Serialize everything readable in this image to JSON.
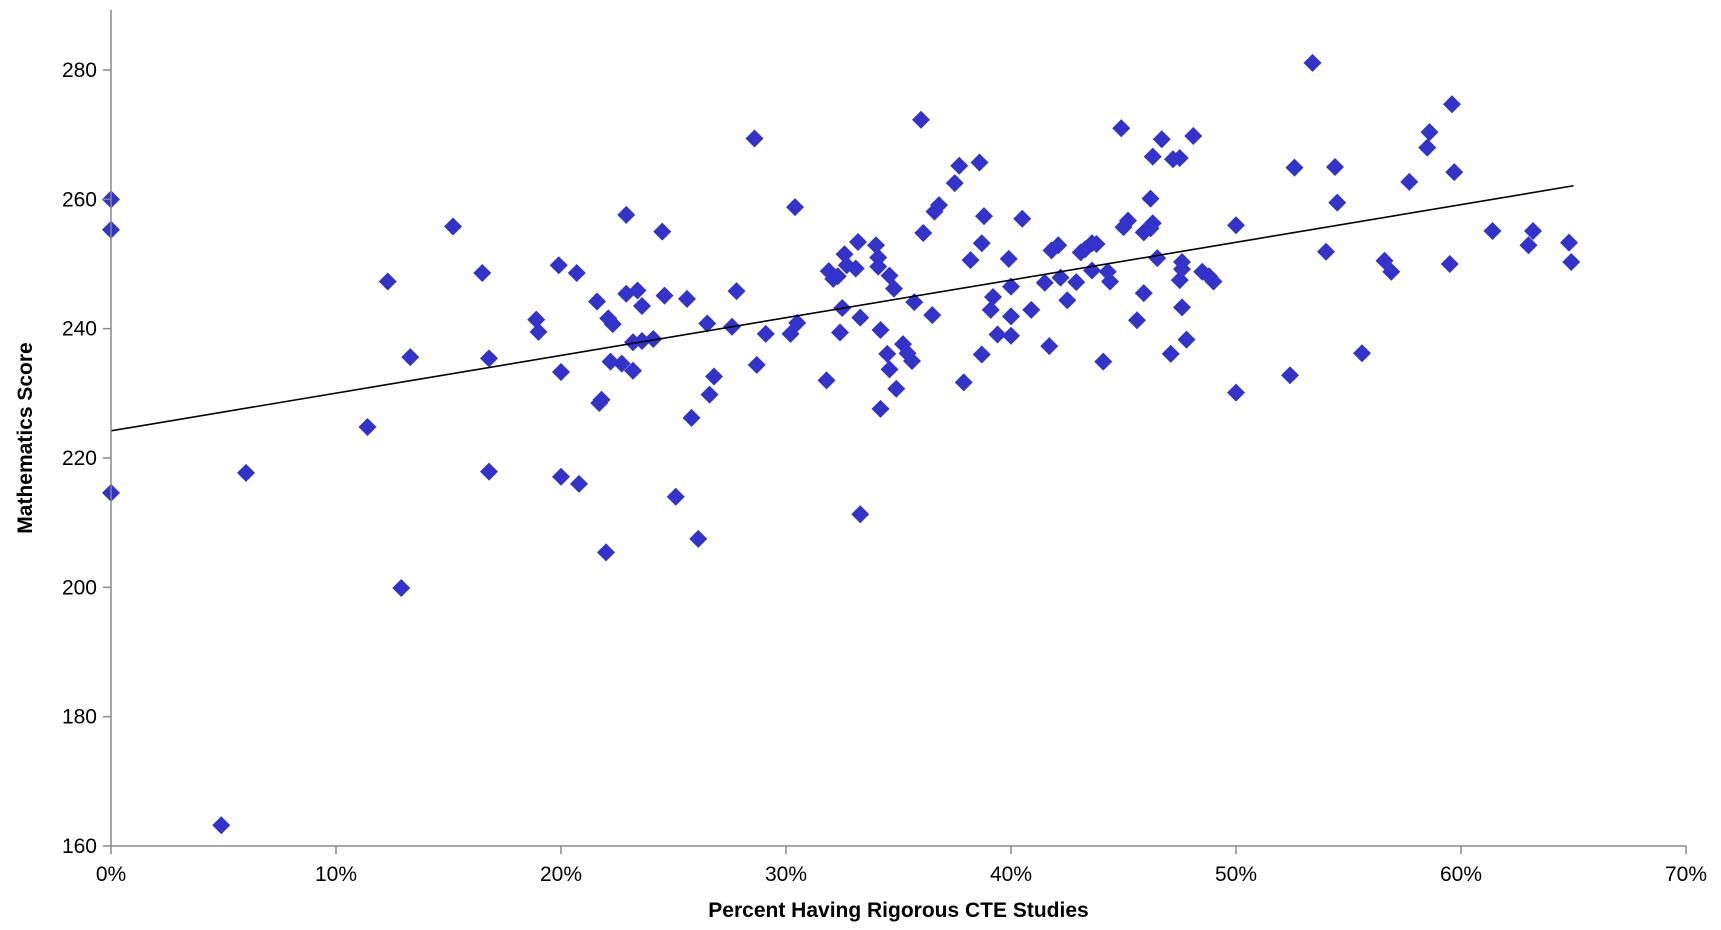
{
  "chart_data": {
    "type": "scatter",
    "title": "",
    "xlabel": "Percent Having Rigorous CTE Studies",
    "ylabel": "Mathematics Score",
    "xlim": [
      0,
      70
    ],
    "ylim": [
      160,
      290
    ],
    "x_ticks": [
      0,
      10,
      20,
      30,
      40,
      50,
      60,
      70
    ],
    "x_tick_labels": [
      "0%",
      "10%",
      "20%",
      "30%",
      "40%",
      "50%",
      "60%",
      "70%"
    ],
    "y_ticks": [
      160,
      180,
      200,
      220,
      240,
      260,
      280
    ],
    "y_tick_labels": [
      "160",
      "180",
      "200",
      "220",
      "240",
      "260",
      "280"
    ],
    "grid": false,
    "legend": "none",
    "marker": "diamond",
    "marker_color": "#3333CC",
    "trendline_color": "#000000",
    "trendline": {
      "x": [
        0,
        65
      ],
      "y": [
        224.2,
        262.1
      ]
    },
    "points": [
      [
        0,
        260
      ],
      [
        0,
        255.3
      ],
      [
        0,
        214.6
      ],
      [
        4.9,
        163.2
      ],
      [
        6,
        217.7
      ],
      [
        11.4,
        224.8
      ],
      [
        12.3,
        247.3
      ],
      [
        12.9,
        199.9
      ],
      [
        13.3,
        235.6
      ],
      [
        15.2,
        255.8
      ],
      [
        16.5,
        248.6
      ],
      [
        16.8,
        235.4
      ],
      [
        16.8,
        217.9
      ],
      [
        18.9,
        241.4
      ],
      [
        19,
        239.5
      ],
      [
        19.9,
        249.8
      ],
      [
        20,
        233.3
      ],
      [
        20,
        217.1
      ],
      [
        20.7,
        248.6
      ],
      [
        20.8,
        216
      ],
      [
        21.6,
        244.2
      ],
      [
        21.7,
        228.5
      ],
      [
        21.8,
        229
      ],
      [
        22,
        205.4
      ],
      [
        22.1,
        241.6
      ],
      [
        22.2,
        234.9
      ],
      [
        22.3,
        240.7
      ],
      [
        22.7,
        234.6
      ],
      [
        22.9,
        257.6
      ],
      [
        22.9,
        245.4
      ],
      [
        23.2,
        233.5
      ],
      [
        23.2,
        237.9
      ],
      [
        23.4,
        245.9
      ],
      [
        23.6,
        243.5
      ],
      [
        23.6,
        238.1
      ],
      [
        24.1,
        238.4
      ],
      [
        24.5,
        255
      ],
      [
        24.6,
        245.1
      ],
      [
        25.1,
        214
      ],
      [
        25.6,
        244.6
      ],
      [
        25.8,
        226.2
      ],
      [
        26.1,
        207.5
      ],
      [
        26.5,
        240.8
      ],
      [
        26.6,
        229.8
      ],
      [
        26.8,
        232.6
      ],
      [
        27.6,
        240.3
      ],
      [
        27.8,
        245.8
      ],
      [
        28.6,
        269.4
      ],
      [
        28.7,
        234.4
      ],
      [
        29.1,
        239.2
      ],
      [
        30.2,
        239.2
      ],
      [
        30.4,
        258.8
      ],
      [
        30.5,
        240.9
      ],
      [
        31.8,
        232
      ],
      [
        31.9,
        248.9
      ],
      [
        32.1,
        247.7
      ],
      [
        32.3,
        248.1
      ],
      [
        32.4,
        239.4
      ],
      [
        32.5,
        243.2
      ],
      [
        32.6,
        251.5
      ],
      [
        32.7,
        249.8
      ],
      [
        33.1,
        249.3
      ],
      [
        33.2,
        253.4
      ],
      [
        33.3,
        241.7
      ],
      [
        33.3,
        211.3
      ],
      [
        34,
        252.9
      ],
      [
        34.1,
        251
      ],
      [
        34.1,
        249.6
      ],
      [
        34.2,
        239.8
      ],
      [
        34.2,
        227.6
      ],
      [
        34.5,
        236.1
      ],
      [
        34.6,
        248.2
      ],
      [
        34.6,
        233.7
      ],
      [
        34.8,
        246.2
      ],
      [
        34.9,
        230.7
      ],
      [
        35.2,
        237.6
      ],
      [
        35.4,
        236.2
      ],
      [
        35.6,
        235
      ],
      [
        35.7,
        244.1
      ],
      [
        36,
        272.3
      ],
      [
        36.1,
        254.8
      ],
      [
        36.5,
        242.1
      ],
      [
        36.6,
        258.1
      ],
      [
        36.8,
        259.1
      ],
      [
        37.5,
        262.5
      ],
      [
        37.7,
        265.2
      ],
      [
        37.9,
        231.7
      ],
      [
        38.2,
        250.6
      ],
      [
        38.6,
        265.7
      ],
      [
        38.7,
        236
      ],
      [
        38.7,
        253.2
      ],
      [
        38.8,
        257.4
      ],
      [
        39.1,
        242.9
      ],
      [
        39.2,
        244.9
      ],
      [
        39.4,
        239.1
      ],
      [
        39.9,
        250.8
      ],
      [
        40,
        246.5
      ],
      [
        40,
        241.9
      ],
      [
        40,
        238.9
      ],
      [
        40.5,
        257
      ],
      [
        40.9,
        242.9
      ],
      [
        41.5,
        247.1
      ],
      [
        41.7,
        237.3
      ],
      [
        41.8,
        252.1
      ],
      [
        42.1,
        252.9
      ],
      [
        42.2,
        247.9
      ],
      [
        42.5,
        244.4
      ],
      [
        42.9,
        247.2
      ],
      [
        43.1,
        251.8
      ],
      [
        43.3,
        252.3
      ],
      [
        43.6,
        249
      ],
      [
        43.6,
        253.2
      ],
      [
        43.8,
        253.1
      ],
      [
        44.1,
        234.9
      ],
      [
        44.3,
        248.8
      ],
      [
        44.4,
        247.3
      ],
      [
        44.9,
        271
      ],
      [
        45,
        255.7
      ],
      [
        45.2,
        256.7
      ],
      [
        45.6,
        241.3
      ],
      [
        45.9,
        245.5
      ],
      [
        45.9,
        254.9
      ],
      [
        46.2,
        255.5
      ],
      [
        46.2,
        260.1
      ],
      [
        46.3,
        266.6
      ],
      [
        46.3,
        256.3
      ],
      [
        46.5,
        250.9
      ],
      [
        46.7,
        269.3
      ],
      [
        47.1,
        236.1
      ],
      [
        47.2,
        266.2
      ],
      [
        47.5,
        266.4
      ],
      [
        47.5,
        247.5
      ],
      [
        47.6,
        243.3
      ],
      [
        47.6,
        249.2
      ],
      [
        47.6,
        250.3
      ],
      [
        47.8,
        238.3
      ],
      [
        48.1,
        269.8
      ],
      [
        48.5,
        248.8
      ],
      [
        48.8,
        248.1
      ],
      [
        49,
        247.3
      ],
      [
        50,
        256
      ],
      [
        50,
        230.1
      ],
      [
        52.4,
        232.8
      ],
      [
        52.6,
        264.9
      ],
      [
        53.4,
        281.1
      ],
      [
        54,
        251.9
      ],
      [
        54.4,
        265
      ],
      [
        54.5,
        259.5
      ],
      [
        55.6,
        236.2
      ],
      [
        56.6,
        250.5
      ],
      [
        56.9,
        248.8
      ],
      [
        57.7,
        262.7
      ],
      [
        58.5,
        268
      ],
      [
        58.6,
        270.4
      ],
      [
        59.5,
        250
      ],
      [
        59.6,
        274.7
      ],
      [
        59.7,
        264.2
      ],
      [
        61.4,
        255.1
      ],
      [
        63,
        252.9
      ],
      [
        63.2,
        255.1
      ],
      [
        64.8,
        253.3
      ],
      [
        64.9,
        250.3
      ]
    ]
  }
}
